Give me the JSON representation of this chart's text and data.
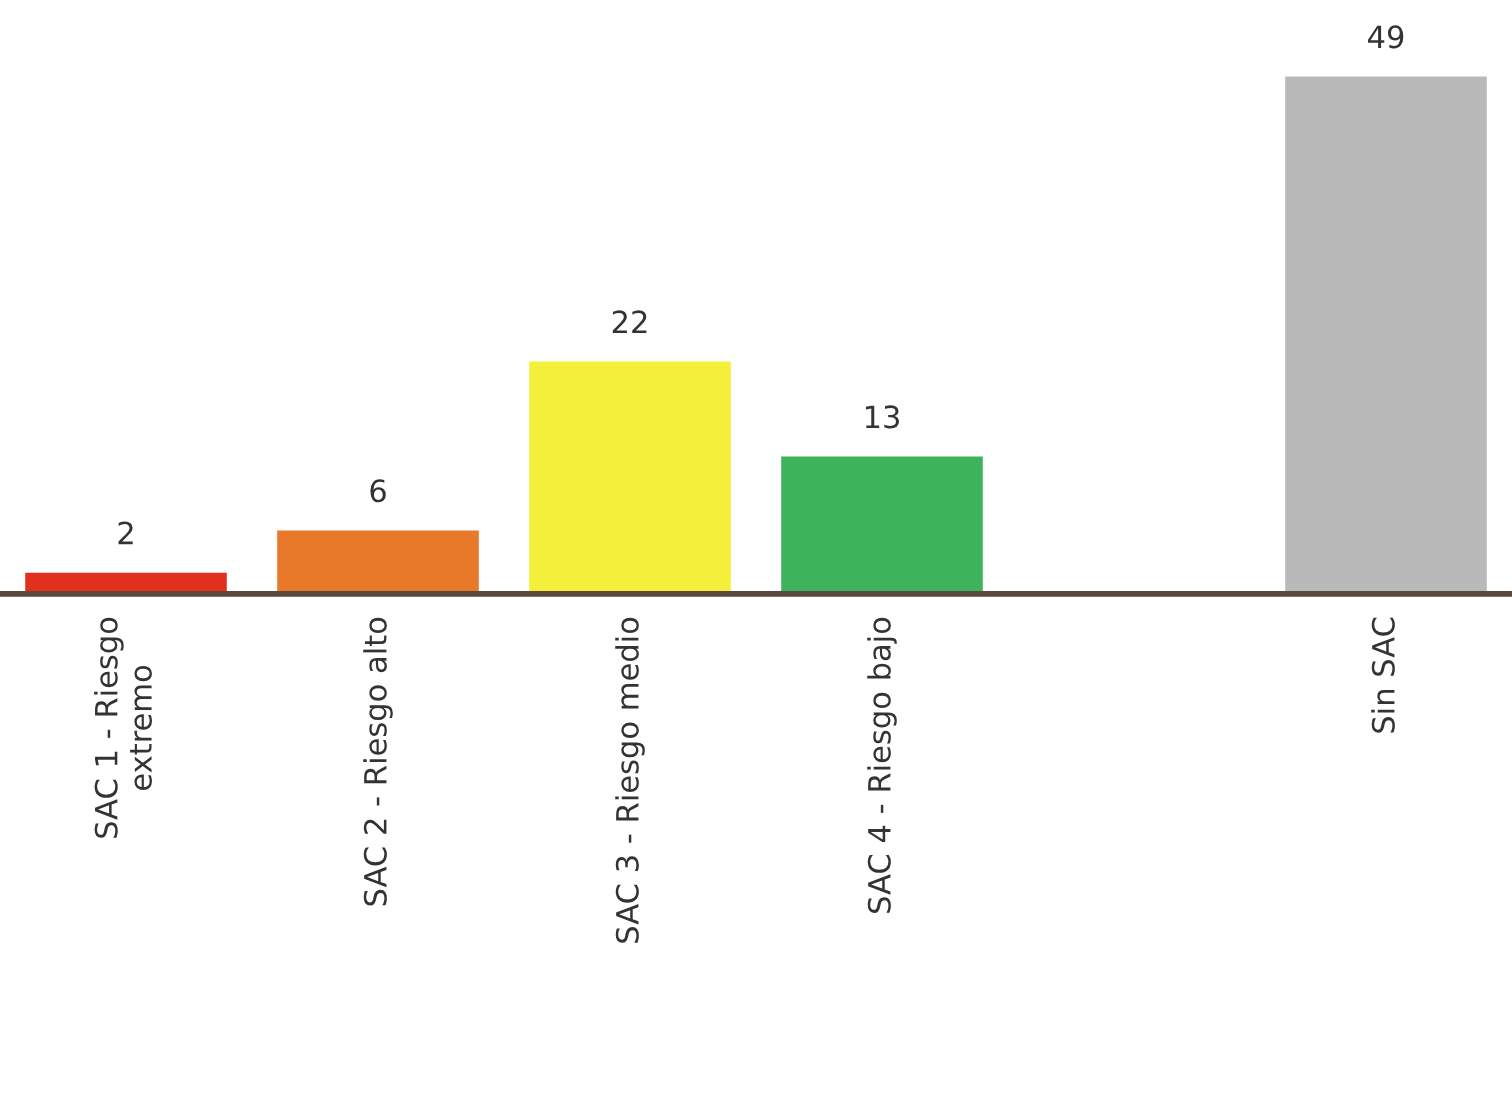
{
  "chart_data": {
    "type": "bar",
    "categories": [
      "SAC 1 - Riesgo\nextremo",
      "SAC 2 - Riesgo alto",
      "SAC 3 - Riesgo medio",
      "SAC 4 - Riesgo bajo",
      null,
      "Sin SAC"
    ],
    "values": [
      2,
      6,
      22,
      13,
      null,
      49
    ],
    "colors": [
      "#e2301f",
      "#e8792a",
      "#f4ef3a",
      "#3db45c",
      null,
      "#b9b9b9"
    ],
    "data_labels": true
  }
}
